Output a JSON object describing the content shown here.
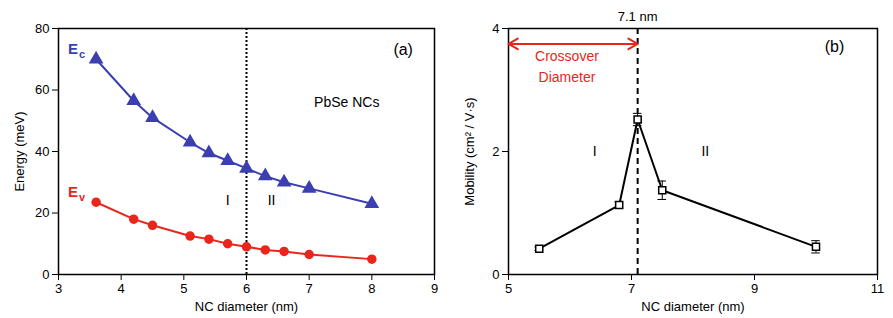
{
  "chart_data": [
    {
      "type": "line",
      "xlabel": "NC diameter (nm)",
      "ylabel": "Energy (meV)",
      "xlim": [
        3,
        9
      ],
      "xticks": [
        3,
        4,
        5,
        6,
        7,
        8,
        9
      ],
      "ylim": [
        0,
        80
      ],
      "yticks": [
        0,
        20,
        40,
        60,
        80
      ],
      "x": [
        3.6,
        4.2,
        4.5,
        5.1,
        5.4,
        5.7,
        6.0,
        6.3,
        6.6,
        7.0,
        8.0
      ],
      "series": [
        {
          "name": "Ec",
          "color": "#3b3fb0",
          "marker": "triangle",
          "values": [
            70,
            56.5,
            51,
            43,
            39.5,
            37,
            34.5,
            32,
            30,
            28,
            23
          ]
        },
        {
          "name": "Ev",
          "color": "#e8261c",
          "marker": "circle",
          "values": [
            23.5,
            18,
            16,
            12.5,
            11.5,
            10,
            9,
            8,
            7.5,
            6.5,
            5
          ]
        }
      ],
      "reference_lines": [
        {
          "x": 6,
          "line_style": "dotted"
        }
      ],
      "annotations": [
        {
          "text": "(a)",
          "x": 8.5,
          "y": 73
        },
        {
          "text": "PbSe NCs",
          "x": 7.6,
          "y": 56
        },
        {
          "text": "I",
          "x": 5.7,
          "y": 24
        },
        {
          "text": "II",
          "x": 6.4,
          "y": 24
        }
      ]
    },
    {
      "type": "line",
      "xlabel": "NC diameter (nm)",
      "ylabel": "Mobility (cm² / V·s)",
      "xlim": [
        5,
        11
      ],
      "xticks": [
        5,
        7,
        9,
        11
      ],
      "ylim": [
        0,
        4
      ],
      "yticks": [
        0,
        2,
        4
      ],
      "x": [
        5.5,
        6.8,
        7.1,
        7.5,
        10
      ],
      "series": [
        {
          "color": "#000000",
          "marker": "square",
          "values": [
            0.42,
            1.13,
            2.52,
            1.37,
            0.45
          ],
          "errors": [
            0.03,
            0.05,
            0.1,
            0.15,
            0.1
          ]
        }
      ],
      "reference_lines": [
        {
          "x": 7.1,
          "line_style": "dashed",
          "label": "7.1 nm"
        }
      ],
      "arrows": [
        {
          "x1": 5,
          "x2": 7.1,
          "y": 3.75,
          "color": "#e8261c"
        }
      ],
      "annotations": [
        {
          "text": "(b)",
          "x": 10.3,
          "y": 3.7
        },
        {
          "text": "Crossover",
          "x": 5.95,
          "y": 3.55,
          "color": "#e8261c"
        },
        {
          "text": "Diameter",
          "x": 5.95,
          "y": 3.2,
          "color": "#e8261c"
        },
        {
          "text": "I",
          "x": 6.4,
          "y": 2.0
        },
        {
          "text": "II",
          "x": 8.2,
          "y": 2.0
        }
      ]
    }
  ]
}
